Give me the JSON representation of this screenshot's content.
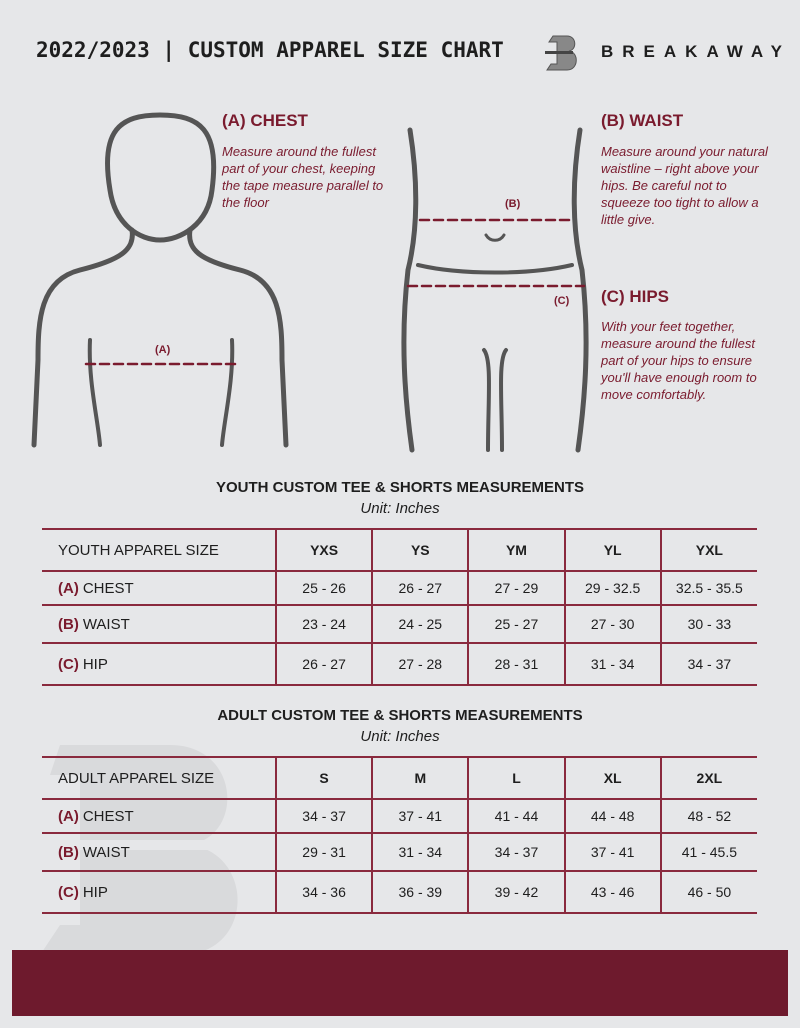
{
  "header": {
    "title": "2022/2023 | CUSTOM APPAREL SIZE CHART",
    "brand": "BREAKAWAY",
    "logo_letter": "B"
  },
  "colors": {
    "accent": "#7a1b2e",
    "background": "#e6e7e9",
    "footer": "#6e1a2d"
  },
  "guide": {
    "chest": {
      "title": "(A) CHEST",
      "text": "Measure around the fullest part of your chest, keeping the tape measure parallel to the floor",
      "marker": "(A)"
    },
    "waist": {
      "title": "(B) WAIST",
      "text": "Measure around your natural waistline – right above your hips. Be careful not to squeeze too tight to allow a little give.",
      "marker": "(B)"
    },
    "hips": {
      "title": "(C) HIPS",
      "text": "With your feet together, measure around the fullest part of your hips to ensure you'll have enough room to move comfortably.",
      "marker": "(C)"
    }
  },
  "youth": {
    "title": "YOUTH CUSTOM TEE & SHORTS MEASUREMENTS",
    "unit": "Unit: Inches",
    "header": "YOUTH APPAREL SIZE",
    "sizes": [
      "YXS",
      "YS",
      "YM",
      "YL",
      "YXL"
    ],
    "rows": [
      {
        "code": "(A)",
        "label": "CHEST",
        "values": [
          "25 - 26",
          "26 - 27",
          "27 - 29",
          "29 - 32.5",
          "32.5 - 35.5"
        ]
      },
      {
        "code": "(B)",
        "label": "WAIST",
        "values": [
          "23 - 24",
          "24 - 25",
          "25 - 27",
          "27 - 30",
          "30 - 33"
        ]
      },
      {
        "code": "(C)",
        "label": "HIP",
        "values": [
          "26 - 27",
          "27 - 28",
          "28 - 31",
          "31 - 34",
          "34 - 37"
        ]
      }
    ]
  },
  "adult": {
    "title": "ADULT CUSTOM TEE & SHORTS MEASUREMENTS",
    "unit": "Unit: Inches",
    "header": "ADULT APPAREL SIZE",
    "sizes": [
      "S",
      "M",
      "L",
      "XL",
      "2XL"
    ],
    "rows": [
      {
        "code": "(A)",
        "label": "CHEST",
        "values": [
          "34 - 37",
          "37 - 41",
          "41 - 44",
          "44 - 48",
          "48 - 52"
        ]
      },
      {
        "code": "(B)",
        "label": "WAIST",
        "values": [
          "29 - 31",
          "31 - 34",
          "34 - 37",
          "37 - 41",
          "41 - 45.5"
        ]
      },
      {
        "code": "(C)",
        "label": "HIP",
        "values": [
          "34 - 36",
          "36 - 39",
          "39 - 42",
          "43 - 46",
          "46 - 50"
        ]
      }
    ]
  }
}
